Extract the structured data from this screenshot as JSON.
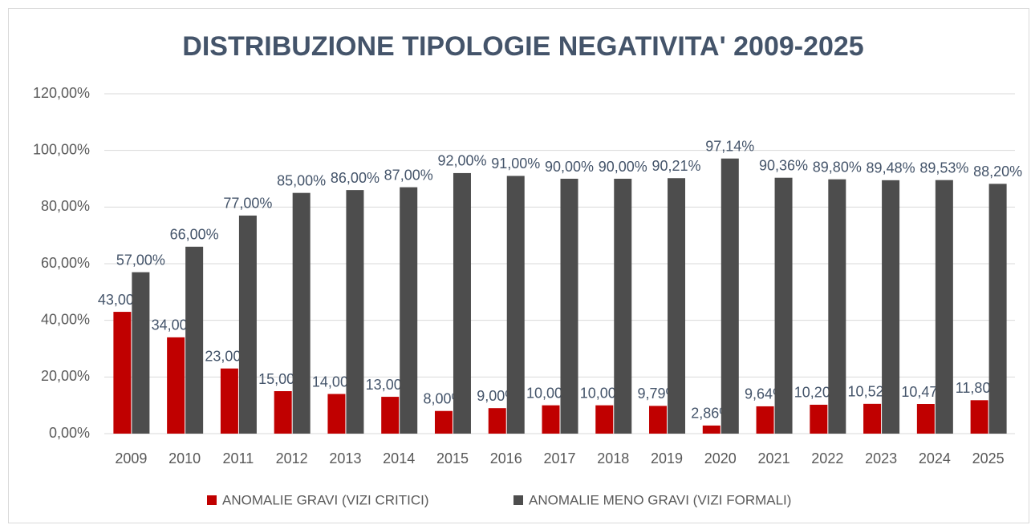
{
  "chart_data": {
    "type": "bar",
    "title": "DISTRIBUZIONE TIPOLOGIE NEGATIVITA' 2009-2025",
    "categories": [
      "2009",
      "2010",
      "2011",
      "2012",
      "2013",
      "2014",
      "2015",
      "2016",
      "2017",
      "2018",
      "2019",
      "2020",
      "2021",
      "2022",
      "2023",
      "2024",
      "2025"
    ],
    "series": [
      {
        "name": "ANOMALIE GRAVI (VIZI CRITICI)",
        "color": "#c00000",
        "values": [
          43,
          34,
          23,
          15,
          14,
          13,
          8,
          9,
          10,
          10,
          9.79,
          2.86,
          9.64,
          10.2,
          10.52,
          10.47,
          11.8
        ],
        "value_labels": [
          "43,00%",
          "34,00%",
          "23,00%",
          "15,00%",
          "14,00%",
          "13,00%",
          "8,00%",
          "9,00%",
          "10,00%",
          "10,00%",
          "9,79%",
          "2,86%",
          "9,64%",
          "10,20%",
          "10,52%",
          "10,47%",
          "11,80%"
        ]
      },
      {
        "name": "ANOMALIE MENO GRAVI (VIZI FORMALI)",
        "color": "#4d4d4d",
        "values": [
          57,
          66,
          77,
          85,
          86,
          87,
          92,
          91,
          90,
          90,
          90.21,
          97.14,
          90.36,
          89.8,
          89.48,
          89.53,
          88.2
        ],
        "value_labels": [
          "57,00%",
          "66,00%",
          "77,00%",
          "85,00%",
          "86,00%",
          "87,00%",
          "92,00%",
          "91,00%",
          "90,00%",
          "90,00%",
          "90,21%",
          "97,14%",
          "90,36%",
          "89,80%",
          "89,48%",
          "89,53%",
          "88,20%"
        ]
      }
    ],
    "ylim": [
      0,
      120
    ],
    "yticks": [
      {
        "value": 0,
        "label": "0,00%"
      },
      {
        "value": 20,
        "label": "20,00%"
      },
      {
        "value": 40,
        "label": "40,00%"
      },
      {
        "value": 60,
        "label": "60,00%"
      },
      {
        "value": 80,
        "label": "80,00%"
      },
      {
        "value": 100,
        "label": "100,00%"
      },
      {
        "value": 120,
        "label": "120,00%"
      }
    ],
    "grid": true,
    "legend": "bottom"
  }
}
